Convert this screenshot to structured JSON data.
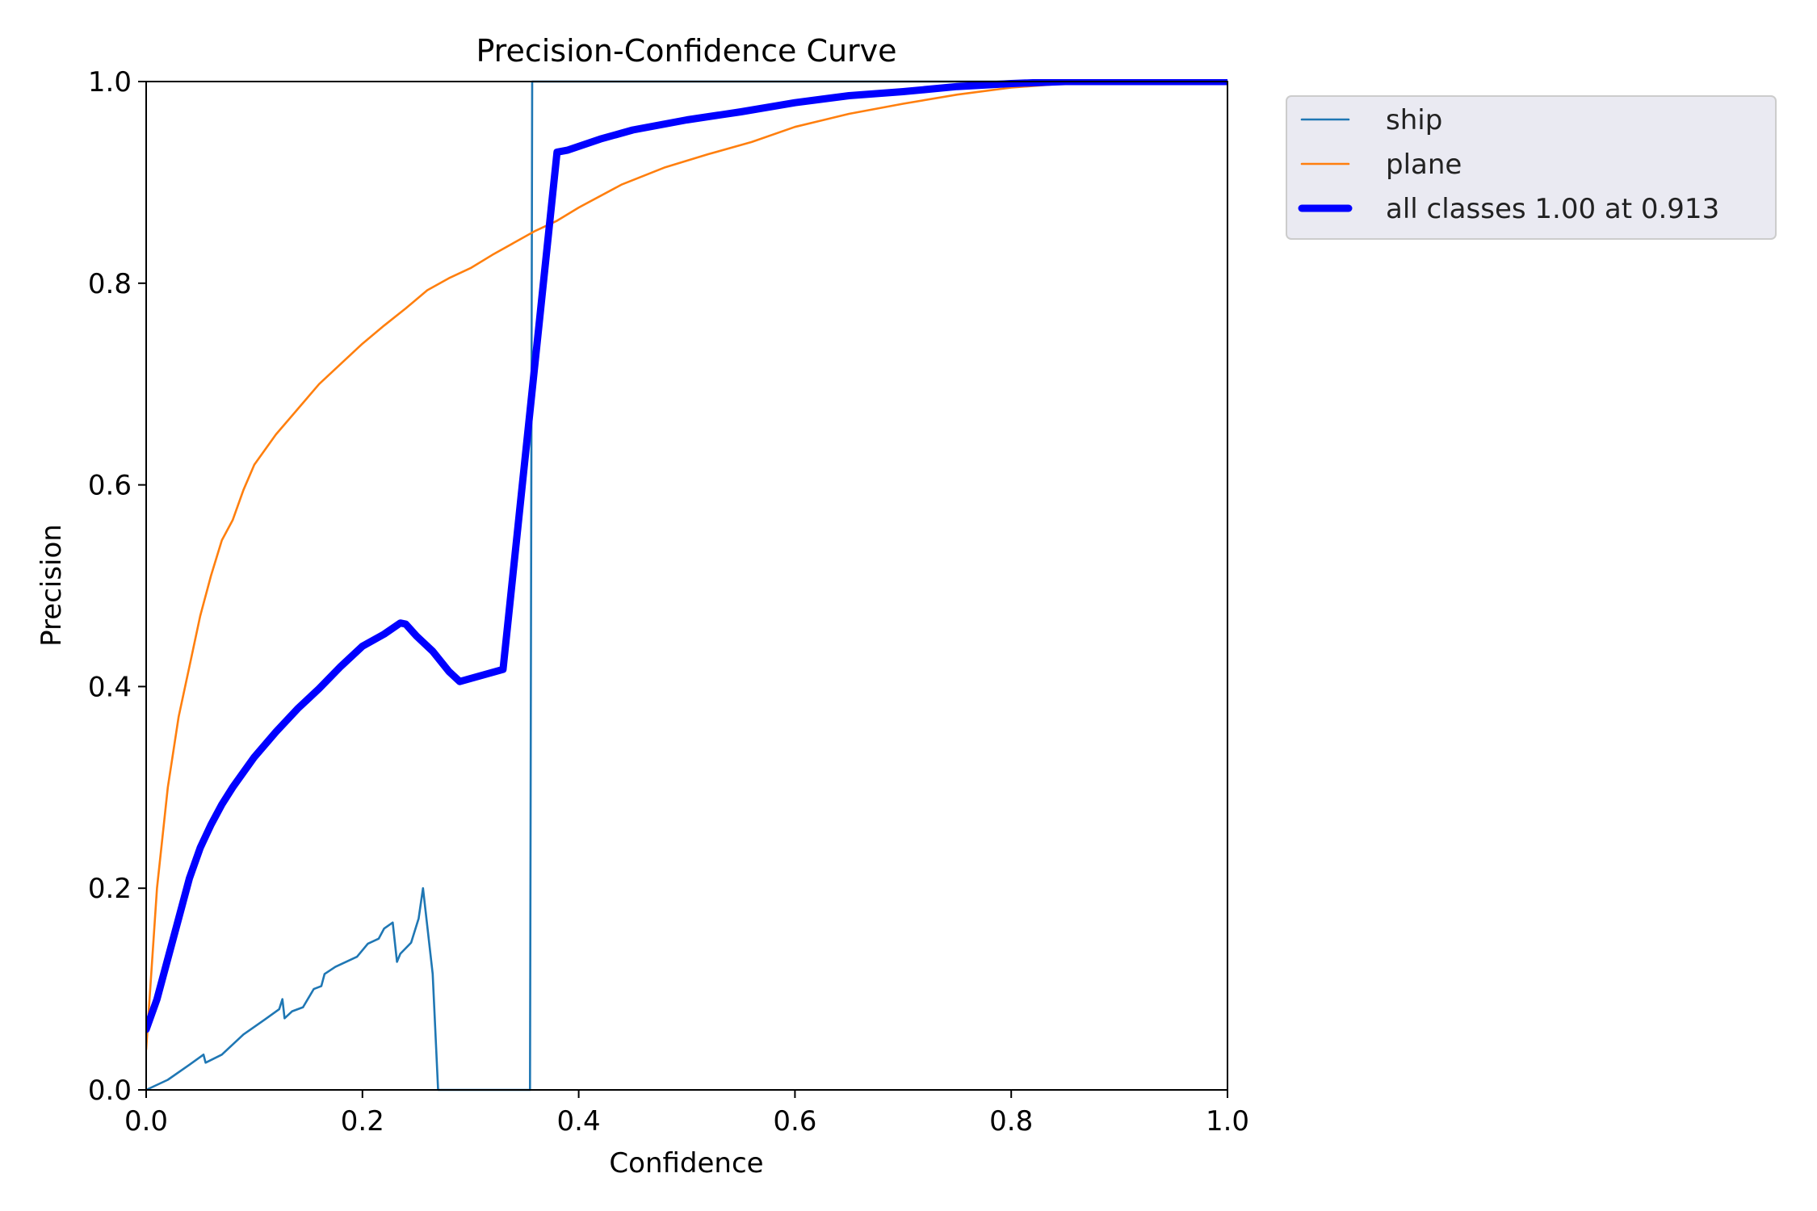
{
  "chart_data": {
    "type": "line",
    "title": "Precision-Confidence Curve",
    "xlabel": "Confidence",
    "ylabel": "Precision",
    "xlim": [
      0,
      1
    ],
    "ylim": [
      0,
      1
    ],
    "xticks": [
      "0.0",
      "0.2",
      "0.4",
      "0.6",
      "0.8",
      "1.0"
    ],
    "yticks": [
      "0.0",
      "0.2",
      "0.4",
      "0.6",
      "0.8",
      "1.0"
    ],
    "grid": false,
    "legend_position": "outside-top-right",
    "series": [
      {
        "name": "ship",
        "color": "#1f77b4",
        "points": [
          [
            0.0,
            0.0
          ],
          [
            0.02,
            0.01
          ],
          [
            0.04,
            0.025
          ],
          [
            0.053,
            0.035
          ],
          [
            0.055,
            0.027
          ],
          [
            0.07,
            0.035
          ],
          [
            0.09,
            0.055
          ],
          [
            0.11,
            0.07
          ],
          [
            0.123,
            0.08
          ],
          [
            0.126,
            0.09
          ],
          [
            0.128,
            0.071
          ],
          [
            0.135,
            0.078
          ],
          [
            0.145,
            0.082
          ],
          [
            0.155,
            0.1
          ],
          [
            0.162,
            0.103
          ],
          [
            0.165,
            0.115
          ],
          [
            0.175,
            0.122
          ],
          [
            0.195,
            0.132
          ],
          [
            0.205,
            0.145
          ],
          [
            0.215,
            0.15
          ],
          [
            0.22,
            0.16
          ],
          [
            0.228,
            0.166
          ],
          [
            0.232,
            0.127
          ],
          [
            0.235,
            0.135
          ],
          [
            0.245,
            0.146
          ],
          [
            0.252,
            0.17
          ],
          [
            0.256,
            0.2
          ],
          [
            0.265,
            0.115
          ],
          [
            0.27,
            0.0
          ],
          [
            0.355,
            0.0
          ],
          [
            0.357,
            1.0
          ],
          [
            1.0,
            1.0
          ]
        ]
      },
      {
        "name": "plane",
        "color": "#ff7f0e",
        "points": [
          [
            0.0,
            0.04
          ],
          [
            0.01,
            0.2
          ],
          [
            0.02,
            0.3
          ],
          [
            0.03,
            0.37
          ],
          [
            0.04,
            0.42
          ],
          [
            0.05,
            0.47
          ],
          [
            0.06,
            0.51
          ],
          [
            0.07,
            0.545
          ],
          [
            0.08,
            0.565
          ],
          [
            0.09,
            0.595
          ],
          [
            0.1,
            0.62
          ],
          [
            0.12,
            0.65
          ],
          [
            0.14,
            0.675
          ],
          [
            0.16,
            0.7
          ],
          [
            0.18,
            0.72
          ],
          [
            0.2,
            0.74
          ],
          [
            0.22,
            0.758
          ],
          [
            0.24,
            0.775
          ],
          [
            0.26,
            0.793
          ],
          [
            0.28,
            0.805
          ],
          [
            0.3,
            0.815
          ],
          [
            0.32,
            0.828
          ],
          [
            0.34,
            0.84
          ],
          [
            0.36,
            0.852
          ],
          [
            0.38,
            0.862
          ],
          [
            0.4,
            0.875
          ],
          [
            0.44,
            0.898
          ],
          [
            0.48,
            0.915
          ],
          [
            0.52,
            0.928
          ],
          [
            0.56,
            0.94
          ],
          [
            0.6,
            0.955
          ],
          [
            0.65,
            0.968
          ],
          [
            0.7,
            0.978
          ],
          [
            0.75,
            0.987
          ],
          [
            0.8,
            0.994
          ],
          [
            0.85,
            0.998
          ],
          [
            0.9,
            1.0
          ],
          [
            1.0,
            1.0
          ]
        ]
      },
      {
        "name": "all classes 1.00 at 0.913",
        "color": "#0000ff",
        "thick": true,
        "points": [
          [
            0.0,
            0.06
          ],
          [
            0.01,
            0.09
          ],
          [
            0.02,
            0.13
          ],
          [
            0.03,
            0.17
          ],
          [
            0.04,
            0.21
          ],
          [
            0.05,
            0.24
          ],
          [
            0.06,
            0.263
          ],
          [
            0.07,
            0.283
          ],
          [
            0.08,
            0.3
          ],
          [
            0.1,
            0.33
          ],
          [
            0.12,
            0.355
          ],
          [
            0.14,
            0.378
          ],
          [
            0.16,
            0.398
          ],
          [
            0.18,
            0.42
          ],
          [
            0.2,
            0.44
          ],
          [
            0.22,
            0.452
          ],
          [
            0.235,
            0.463
          ],
          [
            0.24,
            0.462
          ],
          [
            0.25,
            0.45
          ],
          [
            0.265,
            0.435
          ],
          [
            0.28,
            0.415
          ],
          [
            0.29,
            0.405
          ],
          [
            0.3,
            0.408
          ],
          [
            0.33,
            0.417
          ],
          [
            0.38,
            0.93
          ],
          [
            0.39,
            0.932
          ],
          [
            0.42,
            0.943
          ],
          [
            0.45,
            0.952
          ],
          [
            0.5,
            0.962
          ],
          [
            0.55,
            0.97
          ],
          [
            0.6,
            0.979
          ],
          [
            0.65,
            0.986
          ],
          [
            0.7,
            0.99
          ],
          [
            0.75,
            0.995
          ],
          [
            0.8,
            0.998
          ],
          [
            0.85,
            1.0
          ],
          [
            1.0,
            1.0
          ]
        ]
      }
    ]
  }
}
